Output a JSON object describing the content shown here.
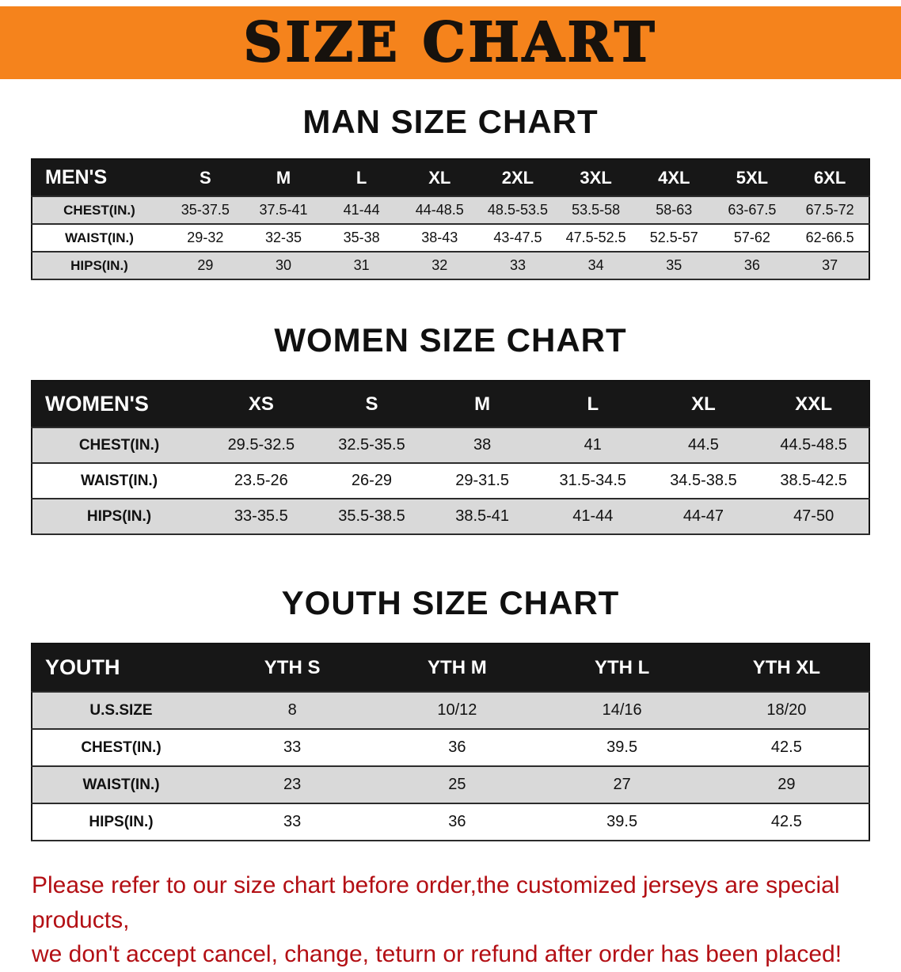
{
  "banner": {
    "title": "SIZE CHART",
    "bg_color": "#f5831c"
  },
  "sections": [
    {
      "id": "men",
      "heading": "MAN SIZE CHART",
      "table": {
        "header": [
          "MEN'S",
          "S",
          "M",
          "L",
          "XL",
          "2XL",
          "3XL",
          "4XL",
          "5XL",
          "6XL"
        ],
        "rows": [
          [
            "CHEST(IN.)",
            "35-37.5",
            "37.5-41",
            "41-44",
            "44-48.5",
            "48.5-53.5",
            "53.5-58",
            "58-63",
            "63-67.5",
            "67.5-72"
          ],
          [
            "WAIST(IN.)",
            "29-32",
            "32-35",
            "35-38",
            "38-43",
            "43-47.5",
            "47.5-52.5",
            "52.5-57",
            "57-62",
            "62-66.5"
          ],
          [
            "HIPS(IN.)",
            "29",
            "30",
            "31",
            "32",
            "33",
            "34",
            "35",
            "36",
            "37"
          ]
        ]
      }
    },
    {
      "id": "women",
      "heading": "WOMEN SIZE CHART",
      "table": {
        "header": [
          "WOMEN'S",
          "XS",
          "S",
          "M",
          "L",
          "XL",
          "XXL"
        ],
        "rows": [
          [
            "CHEST(IN.)",
            "29.5-32.5",
            "32.5-35.5",
            "38",
            "41",
            "44.5",
            "44.5-48.5"
          ],
          [
            "WAIST(IN.)",
            "23.5-26",
            "26-29",
            "29-31.5",
            "31.5-34.5",
            "34.5-38.5",
            "38.5-42.5"
          ],
          [
            "HIPS(IN.)",
            "33-35.5",
            "35.5-38.5",
            "38.5-41",
            "41-44",
            "44-47",
            "47-50"
          ]
        ]
      }
    },
    {
      "id": "youth",
      "heading": "YOUTH SIZE CHART",
      "table": {
        "header": [
          "YOUTH",
          "YTH S",
          "YTH M",
          "YTH L",
          "YTH XL"
        ],
        "rows": [
          [
            "U.S.SIZE",
            "8",
            "10/12",
            "14/16",
            "18/20"
          ],
          [
            "CHEST(IN.)",
            "33",
            "36",
            "39.5",
            "42.5"
          ],
          [
            "WAIST(IN.)",
            "23",
            "25",
            "27",
            "29"
          ],
          [
            "HIPS(IN.)",
            "33",
            "36",
            "39.5",
            "42.5"
          ]
        ]
      }
    }
  ],
  "footer": {
    "lines": [
      "Please refer to our size chart before order,the customized jerseys are special products,",
      "we don't accept cancel, change, teturn or refund after order has been placed!"
    ],
    "text_color": "#b30f14"
  }
}
